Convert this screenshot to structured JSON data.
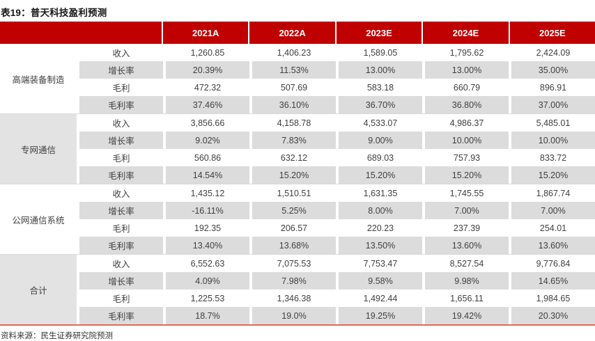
{
  "title": "表19：普天科技盈利预测",
  "source": "资料来源：民生证券研究院预测",
  "colors": {
    "header_red": "#C00000",
    "header_text": "#FFFFFF",
    "stripe_gray": "#DCDCDC",
    "group_label_gray": "#E3E3E3",
    "separator_gray": "#D9D9D9",
    "bottom_line_salmon": "#DD6A60",
    "body_text": "#3F3F3F"
  },
  "chart_data": {
    "type": "table",
    "title": "普天科技盈利预测",
    "columns": [
      "2021A",
      "2022A",
      "2023E",
      "2024E",
      "2025E"
    ],
    "groups": [
      {
        "name": "高端装备制造",
        "shaded": false,
        "rows": [
          {
            "label": "收入",
            "values": [
              "1,260.85",
              "1,406.23",
              "1,589.05",
              "1,795.62",
              "2,424.09"
            ]
          },
          {
            "label": "增长率",
            "values": [
              "20.39%",
              "11.53%",
              "13.00%",
              "13.00%",
              "35.00%"
            ]
          },
          {
            "label": "毛利",
            "values": [
              "472.32",
              "507.69",
              "583.18",
              "660.79",
              "896.91"
            ]
          },
          {
            "label": "毛利率",
            "values": [
              "37.46%",
              "36.10%",
              "36.70%",
              "36.80%",
              "37.00%"
            ]
          }
        ]
      },
      {
        "name": "专网通信",
        "shaded": true,
        "rows": [
          {
            "label": "收入",
            "values": [
              "3,856.66",
              "4,158.78",
              "4,533.07",
              "4,986.37",
              "5,485.01"
            ]
          },
          {
            "label": "增长率",
            "values": [
              "9.02%",
              "7.83%",
              "9.00%",
              "10.00%",
              "10.00%"
            ]
          },
          {
            "label": "毛利",
            "values": [
              "560.86",
              "632.12",
              "689.03",
              "757.93",
              "833.72"
            ]
          },
          {
            "label": "毛利率",
            "values": [
              "14.54%",
              "15.20%",
              "15.20%",
              "15.20%",
              "15.20%"
            ]
          }
        ]
      },
      {
        "name": "公网通信系统",
        "shaded": false,
        "rows": [
          {
            "label": "收入",
            "values": [
              "1,435.12",
              "1,510.51",
              "1,631.35",
              "1,745.55",
              "1,867.74"
            ]
          },
          {
            "label": "增长率",
            "values": [
              "-16.11%",
              "5.25%",
              "8.00%",
              "7.00%",
              "7.00%"
            ]
          },
          {
            "label": "毛利",
            "values": [
              "192.35",
              "206.57",
              "220.23",
              "237.39",
              "254.01"
            ]
          },
          {
            "label": "毛利率",
            "values": [
              "13.40%",
              "13.68%",
              "13.50%",
              "13.60%",
              "13.60%"
            ]
          }
        ]
      },
      {
        "name": "合计",
        "shaded": true,
        "rows": [
          {
            "label": "收入",
            "values": [
              "6,552.63",
              "7,075.53",
              "7,753.47",
              "8,527.54",
              "9,776.84"
            ]
          },
          {
            "label": "增长率",
            "values": [
              "4.09%",
              "7.98%",
              "9.58%",
              "9.98%",
              "14.65%"
            ]
          },
          {
            "label": "毛利",
            "values": [
              "1,225.53",
              "1,346.38",
              "1,492.44",
              "1,656.11",
              "1,984.65"
            ]
          },
          {
            "label": "毛利率",
            "values": [
              "18.7%",
              "19.0%",
              "19.25%",
              "19.42%",
              "20.30%"
            ]
          }
        ]
      }
    ]
  }
}
